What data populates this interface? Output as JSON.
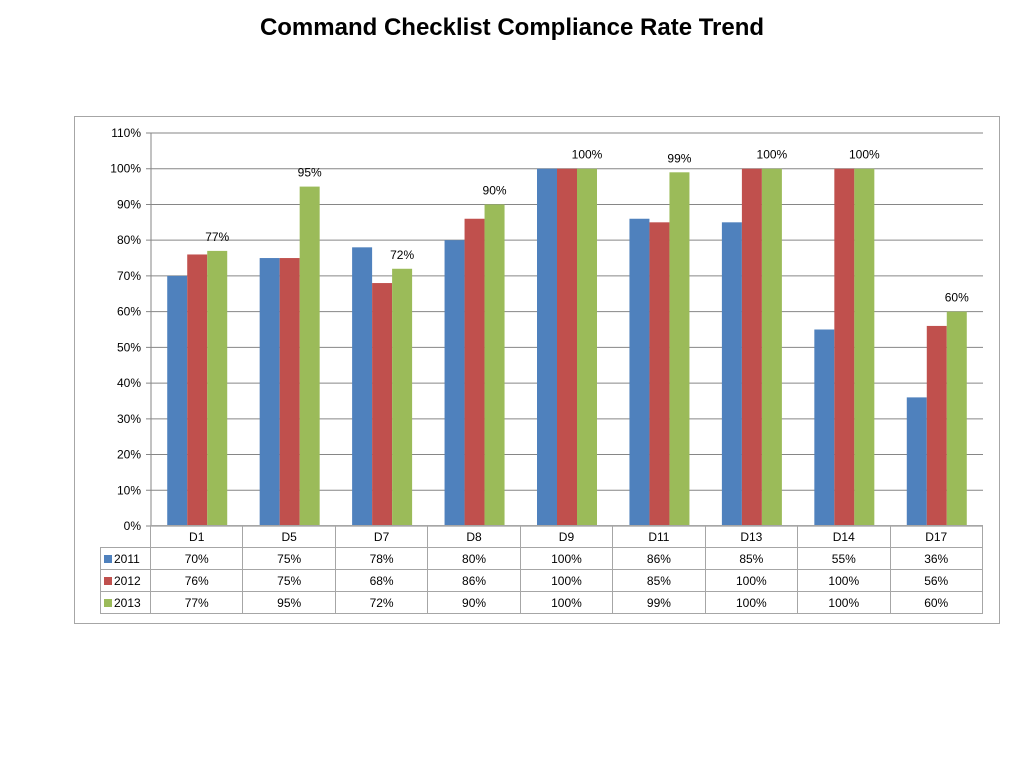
{
  "colors": {
    "2011": "#4f81bd",
    "2012": "#c0504d",
    "2013": "#9bbb59"
  },
  "chart_data": {
    "type": "bar",
    "title": "Command Checklist Compliance Rate Trend",
    "categories": [
      "D1",
      "D5",
      "D7",
      "D8",
      "D9",
      "D11",
      "D13",
      "D14",
      "D17"
    ],
    "series": [
      {
        "name": "2011",
        "values": [
          70,
          75,
          78,
          80,
          100,
          86,
          85,
          55,
          36
        ],
        "display": [
          "70%",
          "75%",
          "78%",
          "80%",
          "100%",
          "86%",
          "85%",
          "55%",
          "36%"
        ]
      },
      {
        "name": "2012",
        "values": [
          76,
          75,
          68,
          86,
          100,
          85,
          100,
          100,
          56
        ],
        "display": [
          "76%",
          "75%",
          "68%",
          "86%",
          "100%",
          "85%",
          "100%",
          "100%",
          "56%"
        ]
      },
      {
        "name": "2013",
        "values": [
          77,
          95,
          72,
          90,
          100,
          99,
          100,
          100,
          60
        ],
        "display": [
          "77%",
          "95%",
          "72%",
          "90%",
          "100%",
          "99%",
          "100%",
          "100%",
          "60%"
        ]
      }
    ],
    "data_labels": {
      "series": "2013",
      "labels": [
        "77%",
        "95%",
        "72%",
        "90%",
        "100%",
        "99%",
        "100%",
        "100%",
        "60%"
      ]
    },
    "ylim": [
      0,
      110
    ],
    "yticks": [
      "0%",
      "10%",
      "20%",
      "30%",
      "40%",
      "50%",
      "60%",
      "70%",
      "80%",
      "90%",
      "100%",
      "110%"
    ],
    "grid": true,
    "legend": "data-table"
  }
}
